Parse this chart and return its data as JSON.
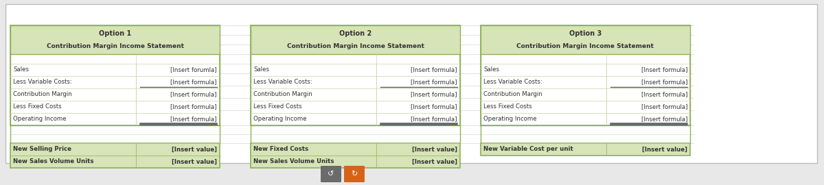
{
  "bg_color": "#e8e8e8",
  "outer_bg": "#f5f5f5",
  "table_bg": "#ffffff",
  "header_bg": "#d6e4b7",
  "footer_bg": "#d6e4b7",
  "border_color": "#8faf5a",
  "grid_color": "#c8d8a8",
  "text_color": "#333333",
  "options": [
    {
      "title1": "Option 1",
      "title2": "Contribution Margin Income Statement",
      "rows": [
        [
          "Sales",
          "[Insert forumla]"
        ],
        [
          "Less Variable Costs:",
          "[Insert formula]"
        ],
        [
          "Contribution Margin",
          "[Insert formula]"
        ],
        [
          "Less Fixed Costs",
          "[Insert formula]"
        ],
        [
          "Operating Income",
          "[Insert formula]"
        ]
      ],
      "footer_rows": [
        [
          "New Selling Price",
          "[Insert value]"
        ],
        [
          "New Sales Volume Units",
          "[Insert value]"
        ]
      ],
      "underline_after_row": 1,
      "double_underline_after_row": 4
    },
    {
      "title1": "Option 2",
      "title2": "Contribution Margin Income Statement",
      "rows": [
        [
          "Sales",
          "[Insert formula]"
        ],
        [
          "Less Variable Costs:",
          "[Insert formula]"
        ],
        [
          "Contribution Margin",
          "[Insert formula]"
        ],
        [
          "Less Fixed Costs",
          "[Insert formula]"
        ],
        [
          "Operating Income",
          "[Insert formula]"
        ]
      ],
      "footer_rows": [
        [
          "New Fixed Costs",
          "[Insert value]"
        ],
        [
          "New Sales Volume Units",
          "[Insert value]"
        ]
      ],
      "underline_after_row": 1,
      "double_underline_after_row": 4
    },
    {
      "title1": "Option 3",
      "title2": "Contribution Margin Income Statement",
      "rows": [
        [
          "Sales",
          "[Insert formula]"
        ],
        [
          "Less Variable Costs:",
          "[Insert formula]"
        ],
        [
          "Contribution Margin",
          "[Insert formula]"
        ],
        [
          "Less Fixed Costs",
          "[Insert formula]"
        ],
        [
          "Operating Income",
          "[Insert formula]"
        ]
      ],
      "footer_rows": [
        [
          "New Variable Cost per unit",
          "[Insert value]"
        ]
      ],
      "underline_after_row": 1,
      "double_underline_after_row": 4
    }
  ],
  "button_gray_color": "#6b6b6b",
  "button_orange_color": "#d4641a",
  "fig_width": 12.0,
  "fig_height": 2.7
}
